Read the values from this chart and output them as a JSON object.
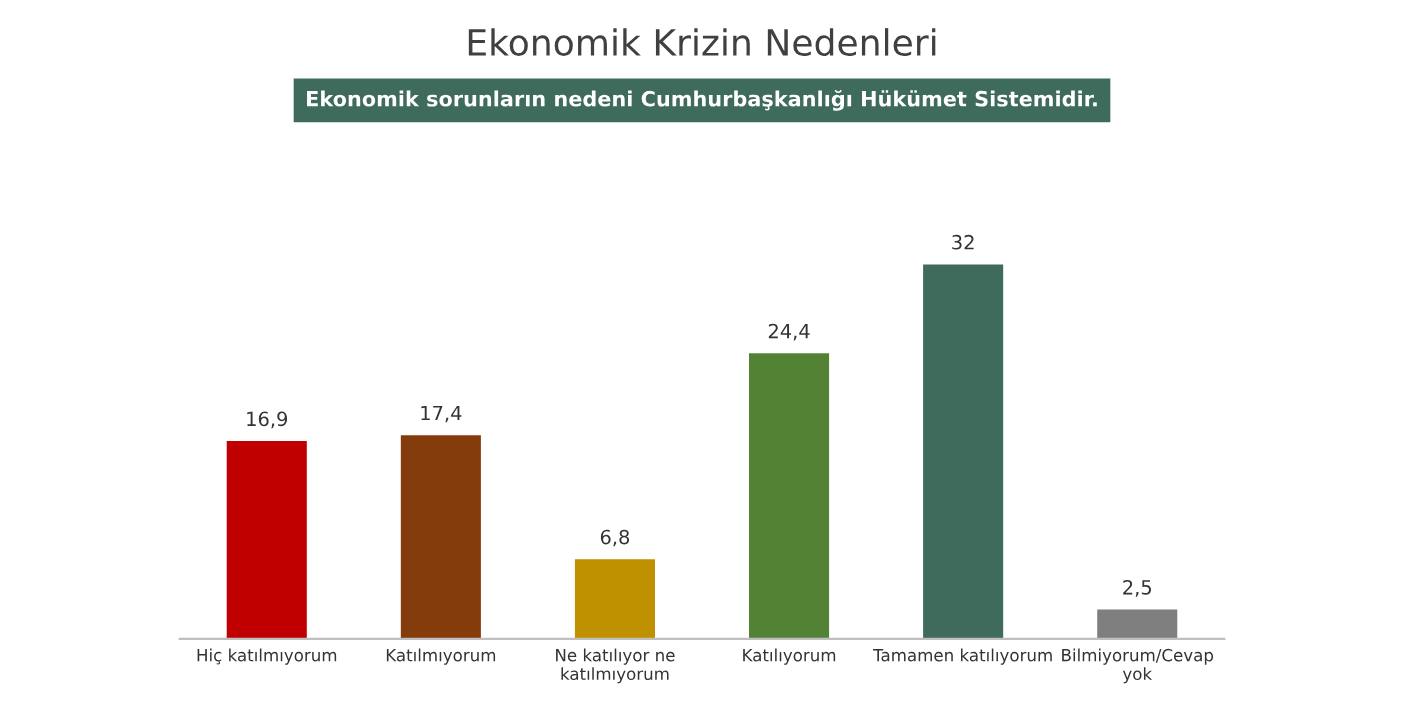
{
  "chart_data": {
    "type": "bar",
    "title": "Ekonomik Krizin Nedenleri",
    "subtitle": "Ekonomik sorunların nedeni Cumhurbaşkanlığı Hükümet Sistemidir.",
    "categories": [
      "Hiç katılmıyorum",
      "Katılmıyorum",
      "Ne katılıyor ne\nkatılmıyorum",
      "Katılıyorum",
      "Tamamen katılıyorum",
      "Bilmiyorum/Cevap\nyok"
    ],
    "values": [
      16.9,
      17.4,
      6.8,
      24.4,
      32,
      2.5
    ],
    "value_labels": [
      "16,9",
      "17,4",
      "6,8",
      "24,4",
      "32",
      "2,5"
    ],
    "colors": [
      "#c00000",
      "#843c0c",
      "#bf9000",
      "#548235",
      "#3e6b5b",
      "#7f7f7f"
    ],
    "grid": false
  }
}
